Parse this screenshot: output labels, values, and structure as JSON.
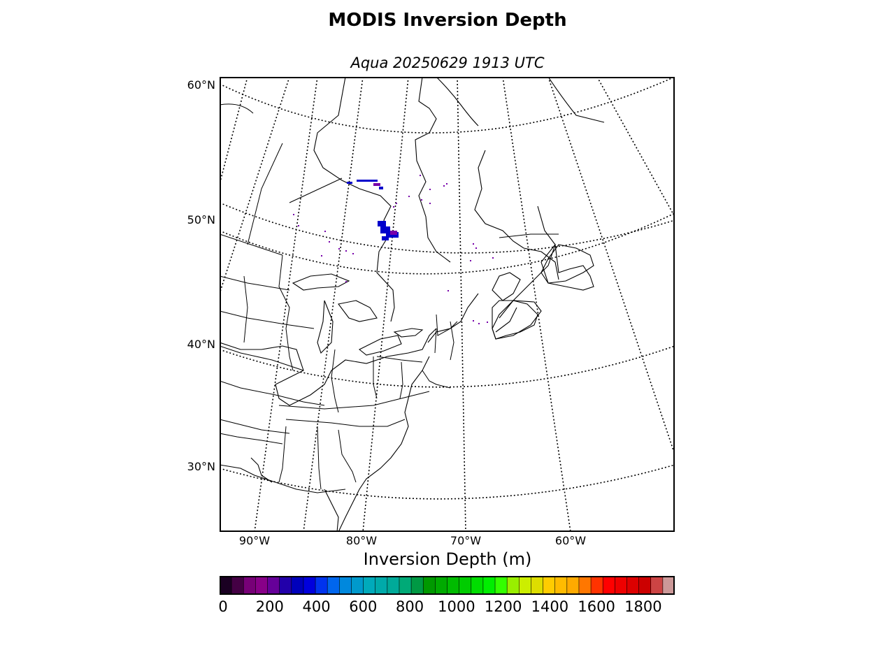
{
  "title": "MODIS Inversion Depth",
  "subtitle": "Aqua 20250629 1913 UTC",
  "map": {
    "lat_labels": [
      "60°N",
      "50°N",
      "40°N",
      "30°N"
    ],
    "lon_labels": [
      "90°W",
      "80°W",
      "70°W",
      "60°W"
    ],
    "coastline_color": "#000000",
    "gridline_style": "dotted"
  },
  "colorbar": {
    "label": "Inversion Depth (m)",
    "min": 0,
    "max": 1950,
    "tick_labels": [
      "0",
      "200",
      "400",
      "600",
      "800",
      "1000",
      "1200",
      "1400",
      "1600",
      "1800"
    ],
    "tick_values": [
      0,
      200,
      400,
      600,
      800,
      1000,
      1200,
      1400,
      1600,
      1800
    ],
    "colors": [
      "#1a0022",
      "#440044",
      "#770077",
      "#880088",
      "#660099",
      "#2200aa",
      "#0000bb",
      "#0000dd",
      "#0033ee",
      "#0066ee",
      "#0088dd",
      "#0099cc",
      "#00aabb",
      "#00aaaa",
      "#00aa99",
      "#00aa77",
      "#009944",
      "#009900",
      "#00aa00",
      "#00bb00",
      "#00cc00",
      "#00dd00",
      "#00ee00",
      "#33ff00",
      "#99ee00",
      "#ccee00",
      "#dddd00",
      "#ffcc00",
      "#ffbb00",
      "#ffaa00",
      "#ff7700",
      "#ff3300",
      "#ff0000",
      "#ee0000",
      "#dd0000",
      "#cc0000",
      "#cc4444",
      "#cc9999"
    ]
  },
  "data_colors": {
    "low_purple": "#7700aa",
    "blue": "#0000cc"
  }
}
